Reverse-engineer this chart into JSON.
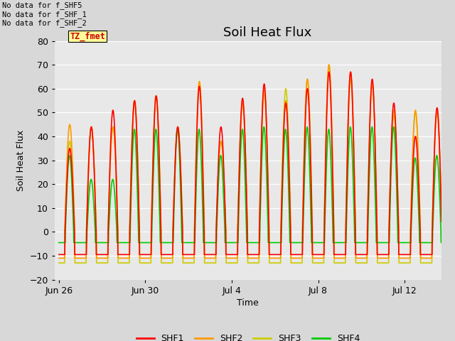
{
  "title": "Soil Heat Flux",
  "xlabel": "Time",
  "ylabel": "Soil Heat Flux",
  "ylim": [
    -20,
    80
  ],
  "yticks": [
    -20,
    -10,
    0,
    10,
    20,
    30,
    40,
    50,
    60,
    70,
    80
  ],
  "xtick_labels": [
    "Jun 26",
    "Jun 30",
    "Jul 4",
    "Jul 8",
    "Jul 12"
  ],
  "outer_bg": "#d8d8d8",
  "plot_bg_color": "#e8e8e8",
  "shf1_color": "#ff0000",
  "shf2_color": "#ff9900",
  "shf3_color": "#cccc00",
  "shf4_color": "#00cc00",
  "annotation_text": "No data for f_SHF5\nNo data for f_SHF_1\nNo data for f_SHF_2",
  "tag_text": "TZ_fmet",
  "tag_bg": "#ffff99",
  "tag_fg": "#cc0000",
  "legend_entries": [
    "SHF1",
    "SHF2",
    "SHF3",
    "SHF4"
  ],
  "line_width": 1.2,
  "n_days": 18,
  "pts_per_day": 96
}
